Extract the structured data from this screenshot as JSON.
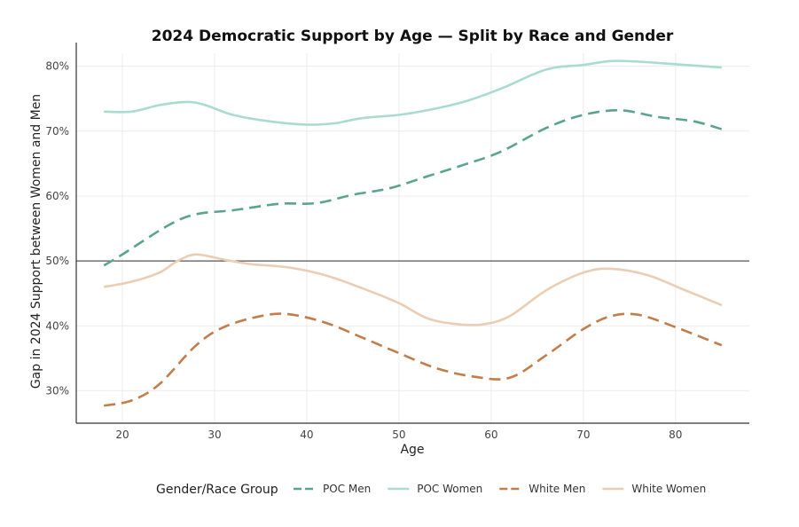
{
  "chart_data": {
    "type": "line",
    "title": "2024 Democratic Support by Age — Split by Race and Gender",
    "xlabel": "Age",
    "ylabel": "Gap in 2024 Support between Women and Men",
    "xlim": [
      15,
      88
    ],
    "ylim": [
      0.25,
      0.82
    ],
    "x_ticks": [
      20,
      30,
      40,
      50,
      60,
      70,
      80
    ],
    "y_ticks": [
      0.3,
      0.4,
      0.5,
      0.6,
      0.7,
      0.8
    ],
    "y_tick_labels": [
      "30%",
      "40%",
      "50%",
      "60%",
      "70%",
      "80%"
    ],
    "reference_line": 0.5,
    "grid": true,
    "legend": {
      "title": "Gender/Race Group",
      "position": "bottom"
    },
    "series": [
      {
        "name": "POC Men",
        "color": "#5aa391",
        "dash": "dashed",
        "x": [
          18,
          20,
          25,
          28,
          32,
          37,
          41,
          45,
          49,
          53,
          57,
          61,
          66,
          70,
          74,
          78,
          82,
          85
        ],
        "y": [
          0.493,
          0.51,
          0.555,
          0.572,
          0.578,
          0.588,
          0.589,
          0.602,
          0.612,
          0.63,
          0.648,
          0.668,
          0.705,
          0.725,
          0.732,
          0.722,
          0.715,
          0.703
        ]
      },
      {
        "name": "POC Women",
        "color": "#a9dbd0",
        "dash": "solid",
        "x": [
          18,
          21,
          24,
          27,
          29,
          32,
          36,
          40,
          43,
          46,
          50,
          53,
          57,
          61,
          66,
          70,
          73,
          76,
          80,
          85
        ],
        "y": [
          0.73,
          0.73,
          0.74,
          0.745,
          0.74,
          0.725,
          0.715,
          0.71,
          0.712,
          0.72,
          0.725,
          0.732,
          0.745,
          0.765,
          0.795,
          0.802,
          0.808,
          0.807,
          0.803,
          0.798
        ]
      },
      {
        "name": "White Men",
        "color": "#c27d4a",
        "dash": "dashed",
        "x": [
          18,
          21,
          24,
          28,
          31,
          35,
          38,
          42,
          46,
          50,
          54,
          58,
          62,
          66,
          70,
          73,
          76,
          80,
          85
        ],
        "y": [
          0.277,
          0.285,
          0.31,
          0.37,
          0.398,
          0.415,
          0.418,
          0.405,
          0.382,
          0.358,
          0.335,
          0.322,
          0.32,
          0.355,
          0.395,
          0.415,
          0.417,
          0.398,
          0.37
        ]
      },
      {
        "name": "White Women",
        "color": "#ebcdb4",
        "dash": "solid",
        "x": [
          18,
          21,
          24,
          26,
          28,
          31,
          34,
          38,
          42,
          46,
          50,
          53,
          56,
          59,
          62,
          66,
          70,
          73,
          77,
          81,
          85
        ],
        "y": [
          0.46,
          0.468,
          0.482,
          0.5,
          0.51,
          0.502,
          0.495,
          0.49,
          0.478,
          0.458,
          0.435,
          0.412,
          0.403,
          0.402,
          0.415,
          0.455,
          0.482,
          0.488,
          0.478,
          0.455,
          0.432
        ]
      }
    ]
  }
}
